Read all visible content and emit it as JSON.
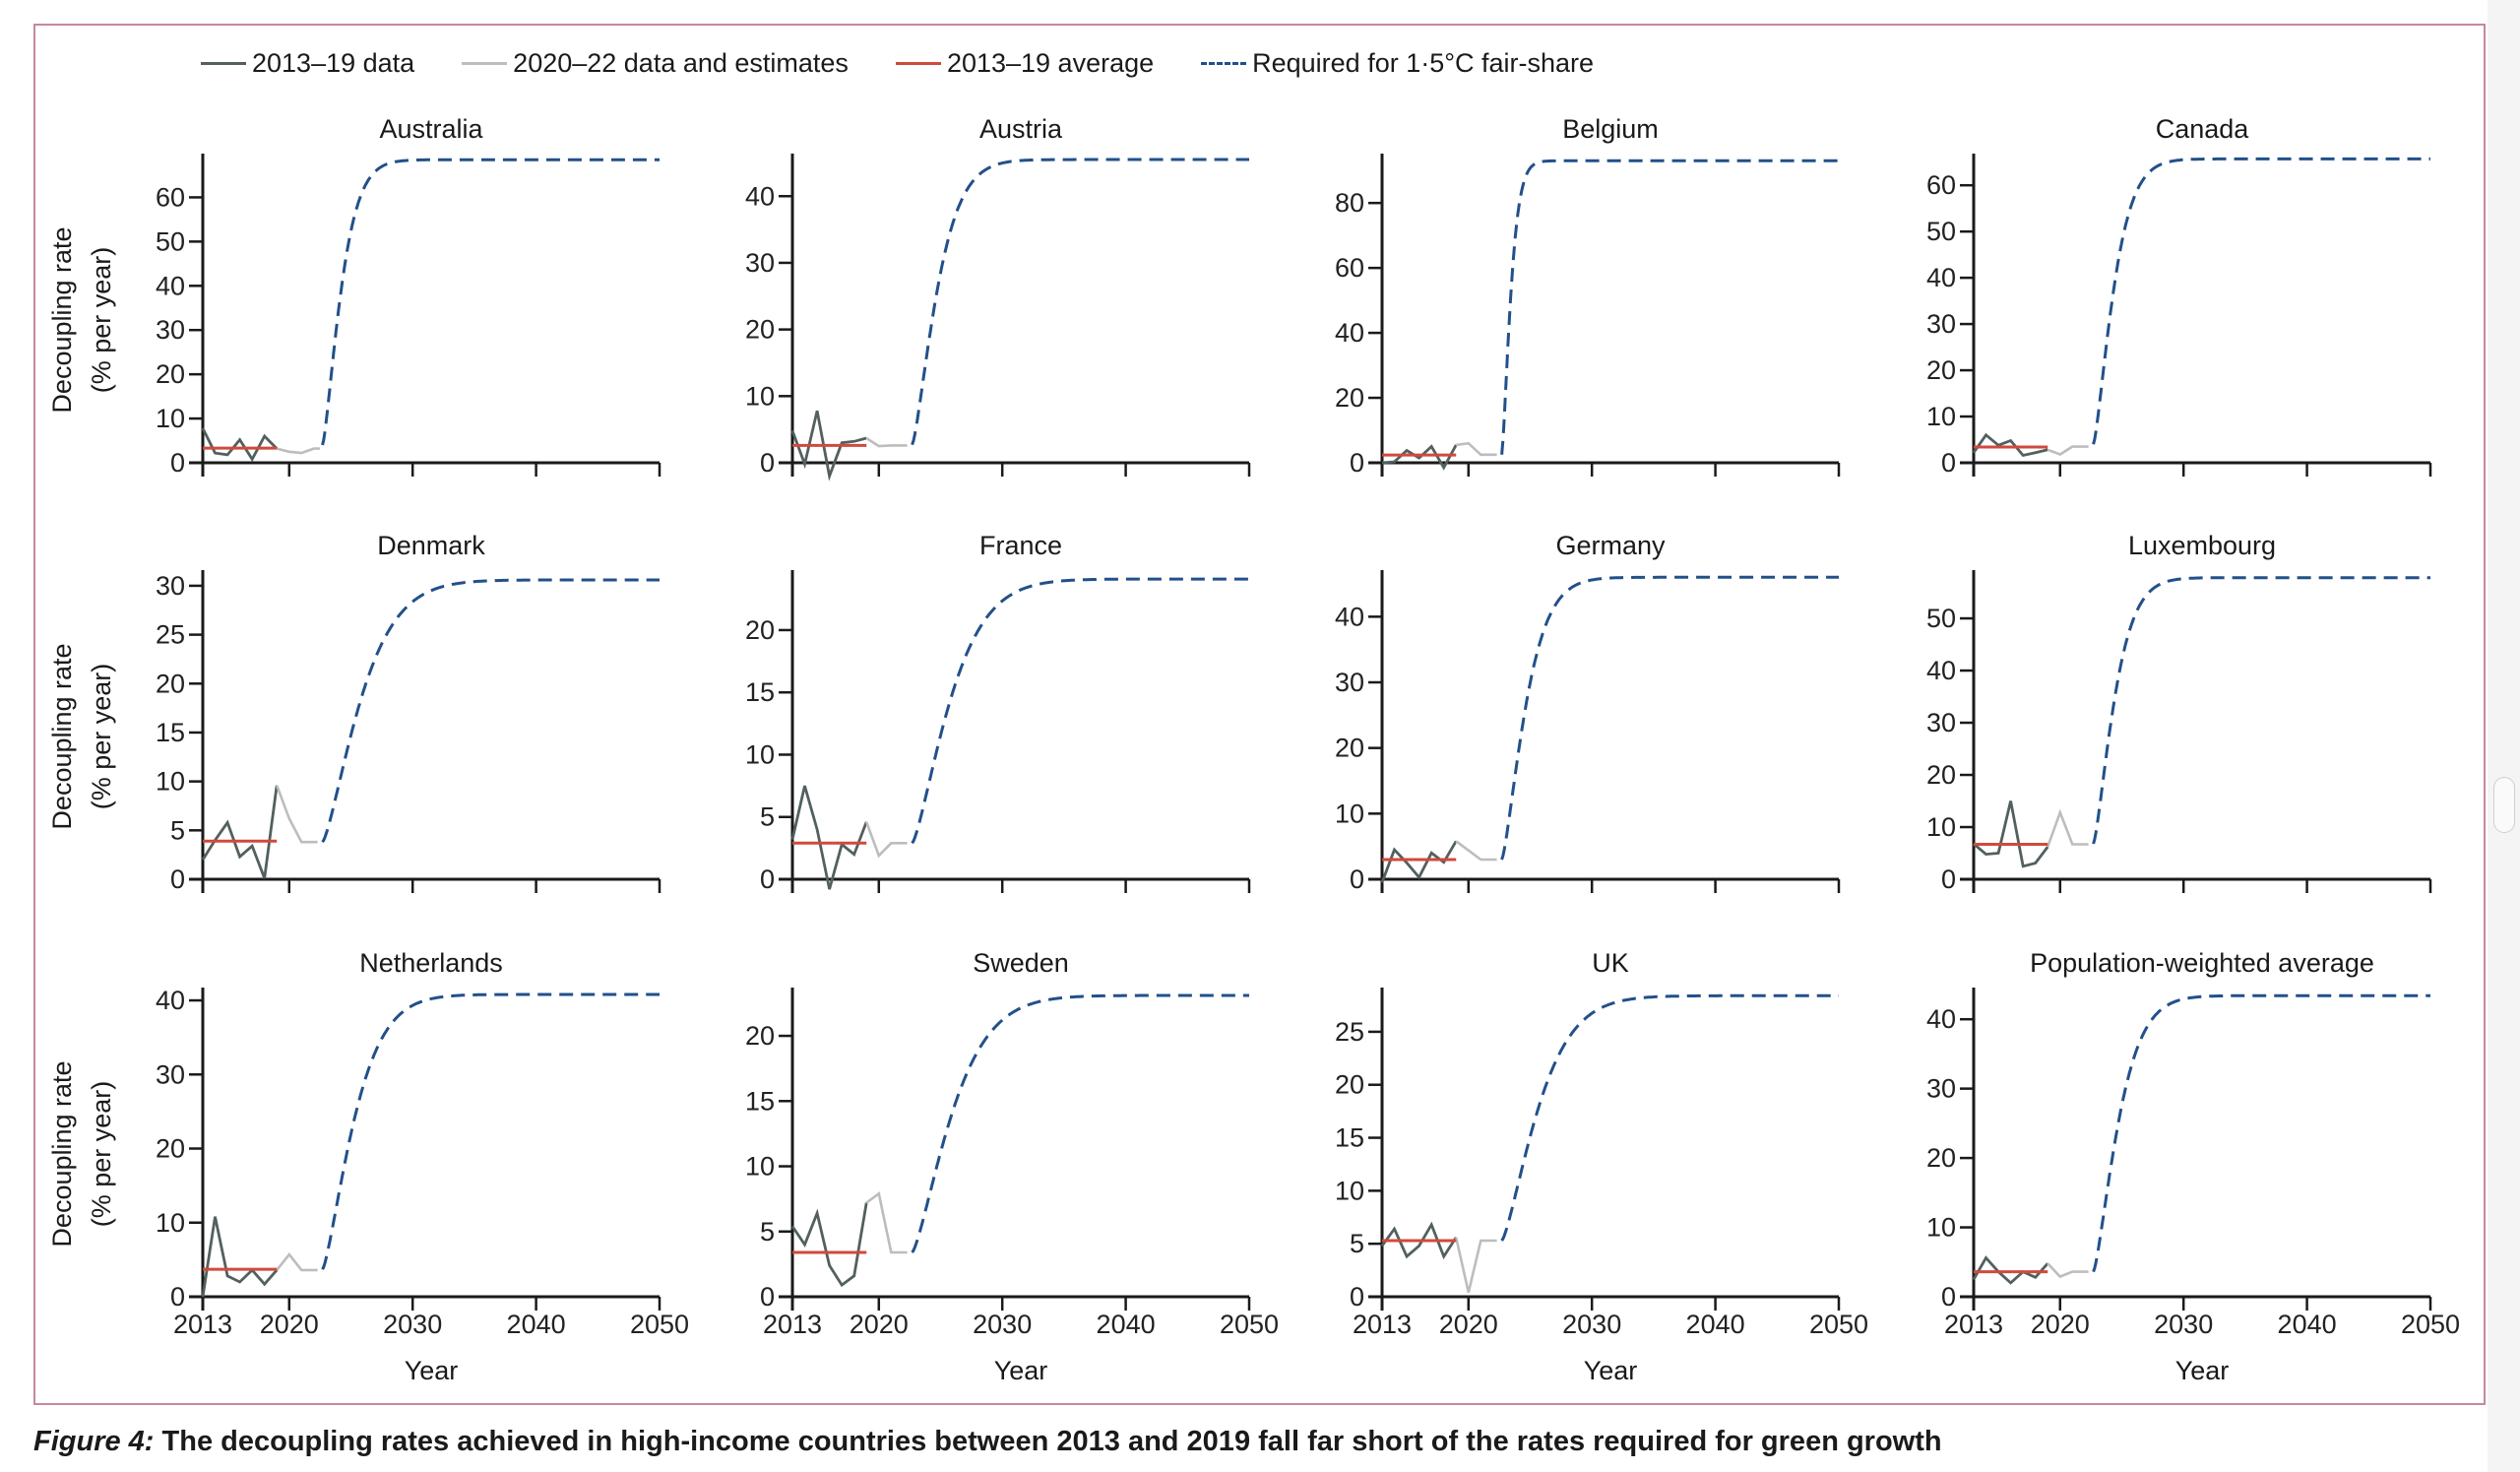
{
  "legend": [
    {
      "label": "2013–19 data",
      "color": "#52605f",
      "style": "solid"
    },
    {
      "label": "2020–22 data and estimates",
      "color": "#bdbdbd",
      "style": "solid"
    },
    {
      "label": "2013–19 average",
      "color": "#d04a3c",
      "style": "solid"
    },
    {
      "label": "Required for 1·5°C fair-share",
      "color": "#22508a",
      "style": "dashed"
    }
  ],
  "caption": {
    "figure_label": "Figure 4:",
    "text": " The decoupling rates achieved in high-income countries between 2013 and 2019 fall far short of the rates required for green growth"
  },
  "chart_data": {
    "type": "line",
    "xlabel": "Year",
    "ylabel": [
      "Decoupling rate",
      "(% per year)"
    ],
    "x_ticks": [
      2013,
      2020,
      2030,
      2040,
      2050
    ],
    "xlim": [
      2013,
      2050
    ],
    "legend_position": "top",
    "grid": false,
    "panels": [
      {
        "title": "Australia",
        "y_ticks": [
          0,
          10,
          20,
          30,
          40,
          50,
          60
        ],
        "ylim": [
          0,
          69
        ],
        "data_2013_19": [
          7.8,
          2.2,
          1.8,
          5.2,
          0.8,
          6.0,
          3.2
        ],
        "data_2020_22": [
          3.2,
          2.5,
          2.2,
          3.2,
          3.2
        ],
        "average_2013_19": 3.3,
        "required_start": 4.0,
        "required_2050": 68.5,
        "required_shape": 0.45
      },
      {
        "title": "Austria",
        "y_ticks": [
          0,
          10,
          20,
          30,
          40
        ],
        "ylim": [
          0,
          45.8
        ],
        "data_2013_19": [
          4.8,
          -0.2,
          7.8,
          -2.0,
          3.0,
          3.2,
          3.7
        ],
        "data_2020_22": [
          3.7,
          2.5,
          2.6,
          2.6
        ],
        "average_2013_19": 2.6,
        "required_start": 2.7,
        "required_2050": 45.5,
        "required_shape": 0.3
      },
      {
        "title": "Belgium",
        "y_ticks": [
          0,
          20,
          40,
          60,
          80
        ],
        "ylim": [
          0,
          94
        ],
        "data_2013_19": [
          0.0,
          0.3,
          3.8,
          1.5,
          5.0,
          -1.5,
          5.5
        ],
        "data_2020_22": [
          5.5,
          6.0,
          2.5,
          2.5
        ],
        "average_2013_19": 2.4,
        "required_start": 2.5,
        "required_2050": 93.0,
        "required_shape": 1.2
      },
      {
        "title": "Canada",
        "y_ticks": [
          0,
          10,
          20,
          30,
          40,
          50,
          60
        ],
        "ylim": [
          0,
          66
        ],
        "data_2013_19": [
          2.2,
          6.0,
          3.8,
          4.8,
          1.6,
          2.2,
          2.8
        ],
        "data_2020_22": [
          2.8,
          1.8,
          3.5,
          3.5
        ],
        "average_2013_19": 3.4,
        "required_start": 4.0,
        "required_2050": 65.7,
        "required_shape": 0.4
      },
      {
        "title": "Denmark",
        "y_ticks": [
          0,
          5,
          10,
          15,
          20,
          25,
          30
        ],
        "ylim": [
          0,
          31.2
        ],
        "data_2013_19": [
          2.0,
          4.0,
          5.8,
          2.3,
          3.4,
          0.1,
          9.6
        ],
        "data_2020_22": [
          9.6,
          6.2,
          3.8,
          3.8
        ],
        "average_2013_19": 3.9,
        "required_start": 3.8,
        "required_2050": 30.6,
        "required_shape": 0.17
      },
      {
        "title": "France",
        "y_ticks": [
          0,
          5,
          10,
          15,
          20
        ],
        "ylim": [
          0,
          24.5
        ],
        "data_2013_19": [
          3.2,
          7.5,
          4.0,
          -0.8,
          2.8,
          2.0,
          4.6
        ],
        "data_2020_22": [
          4.6,
          1.9,
          2.9,
          2.9
        ],
        "average_2013_19": 2.9,
        "required_start": 2.9,
        "required_2050": 24.1,
        "required_shape": 0.17
      },
      {
        "title": "Germany",
        "y_ticks": [
          0,
          10,
          20,
          30,
          40
        ],
        "ylim": [
          0,
          46.5
        ],
        "data_2013_19": [
          -0.5,
          4.5,
          2.5,
          0.3,
          4.0,
          2.6,
          5.8
        ],
        "data_2020_22": [
          5.8,
          4.4,
          3.0,
          3.0
        ],
        "average_2013_19": 3.0,
        "required_start": 3.0,
        "required_2050": 46.0,
        "required_shape": 0.32
      },
      {
        "title": "Luxembourg",
        "y_ticks": [
          0,
          10,
          20,
          30,
          40,
          50
        ],
        "ylim": [
          0,
          58.5
        ],
        "data_2013_19": [
          6.8,
          4.8,
          5.0,
          15.0,
          2.5,
          3.1,
          6.2
        ],
        "data_2020_22": [
          6.2,
          12.8,
          6.7,
          6.7
        ],
        "average_2013_19": 6.7,
        "required_start": 6.8,
        "required_2050": 57.8,
        "required_shape": 0.38
      },
      {
        "title": "Netherlands",
        "y_ticks": [
          0,
          10,
          20,
          30,
          40
        ],
        "ylim": [
          0,
          41.2
        ],
        "data_2013_19": [
          0.0,
          10.8,
          2.8,
          2.0,
          3.6,
          1.7,
          3.6
        ],
        "data_2020_22": [
          3.6,
          5.7,
          3.6,
          3.6
        ],
        "average_2013_19": 3.7,
        "required_start": 3.7,
        "required_2050": 40.8,
        "required_shape": 0.22
      },
      {
        "title": "Sweden",
        "y_ticks": [
          0,
          5,
          10,
          15,
          20
        ],
        "ylim": [
          0,
          23.4
        ],
        "data_2013_19": [
          5.4,
          4.0,
          6.4,
          2.4,
          0.9,
          1.6,
          7.2
        ],
        "data_2020_22": [
          7.2,
          7.9,
          3.4,
          3.4
        ],
        "average_2013_19": 3.4,
        "required_start": 3.4,
        "required_2050": 23.1,
        "required_shape": 0.16
      },
      {
        "title": "UK",
        "y_ticks": [
          0,
          5,
          10,
          15,
          20,
          25
        ],
        "ylim": [
          0,
          28.8
        ],
        "data_2013_19": [
          4.8,
          6.4,
          3.8,
          4.8,
          6.8,
          3.8,
          5.6
        ],
        "data_2020_22": [
          5.6,
          0.4,
          5.3,
          5.3
        ],
        "average_2013_19": 5.3,
        "required_start": 5.3,
        "required_2050": 28.4,
        "required_shape": 0.18
      },
      {
        "title": "Population-weighted average",
        "y_ticks": [
          0,
          10,
          20,
          30,
          40
        ],
        "ylim": [
          0,
          44
        ],
        "data_2013_19": [
          2.5,
          5.6,
          3.6,
          2.0,
          3.6,
          2.8,
          4.8
        ],
        "data_2020_22": [
          4.8,
          2.9,
          3.6,
          3.6
        ],
        "average_2013_19": 3.6,
        "required_start": 3.6,
        "required_2050": 43.4,
        "required_shape": 0.3
      }
    ]
  }
}
